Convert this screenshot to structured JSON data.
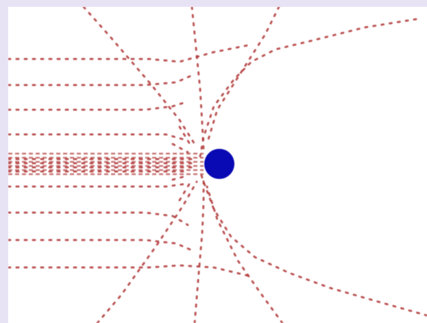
{
  "diagram": {
    "kind": "field lines / streamlines around a point object",
    "background_color": "#ffffff",
    "frame_color": "#e8e3f4",
    "line_color": "#b23a3a",
    "dot_color": "#0a0ab4",
    "object": "blue-dot",
    "arrow_style": "dotted red arrows",
    "text_labels": []
  }
}
